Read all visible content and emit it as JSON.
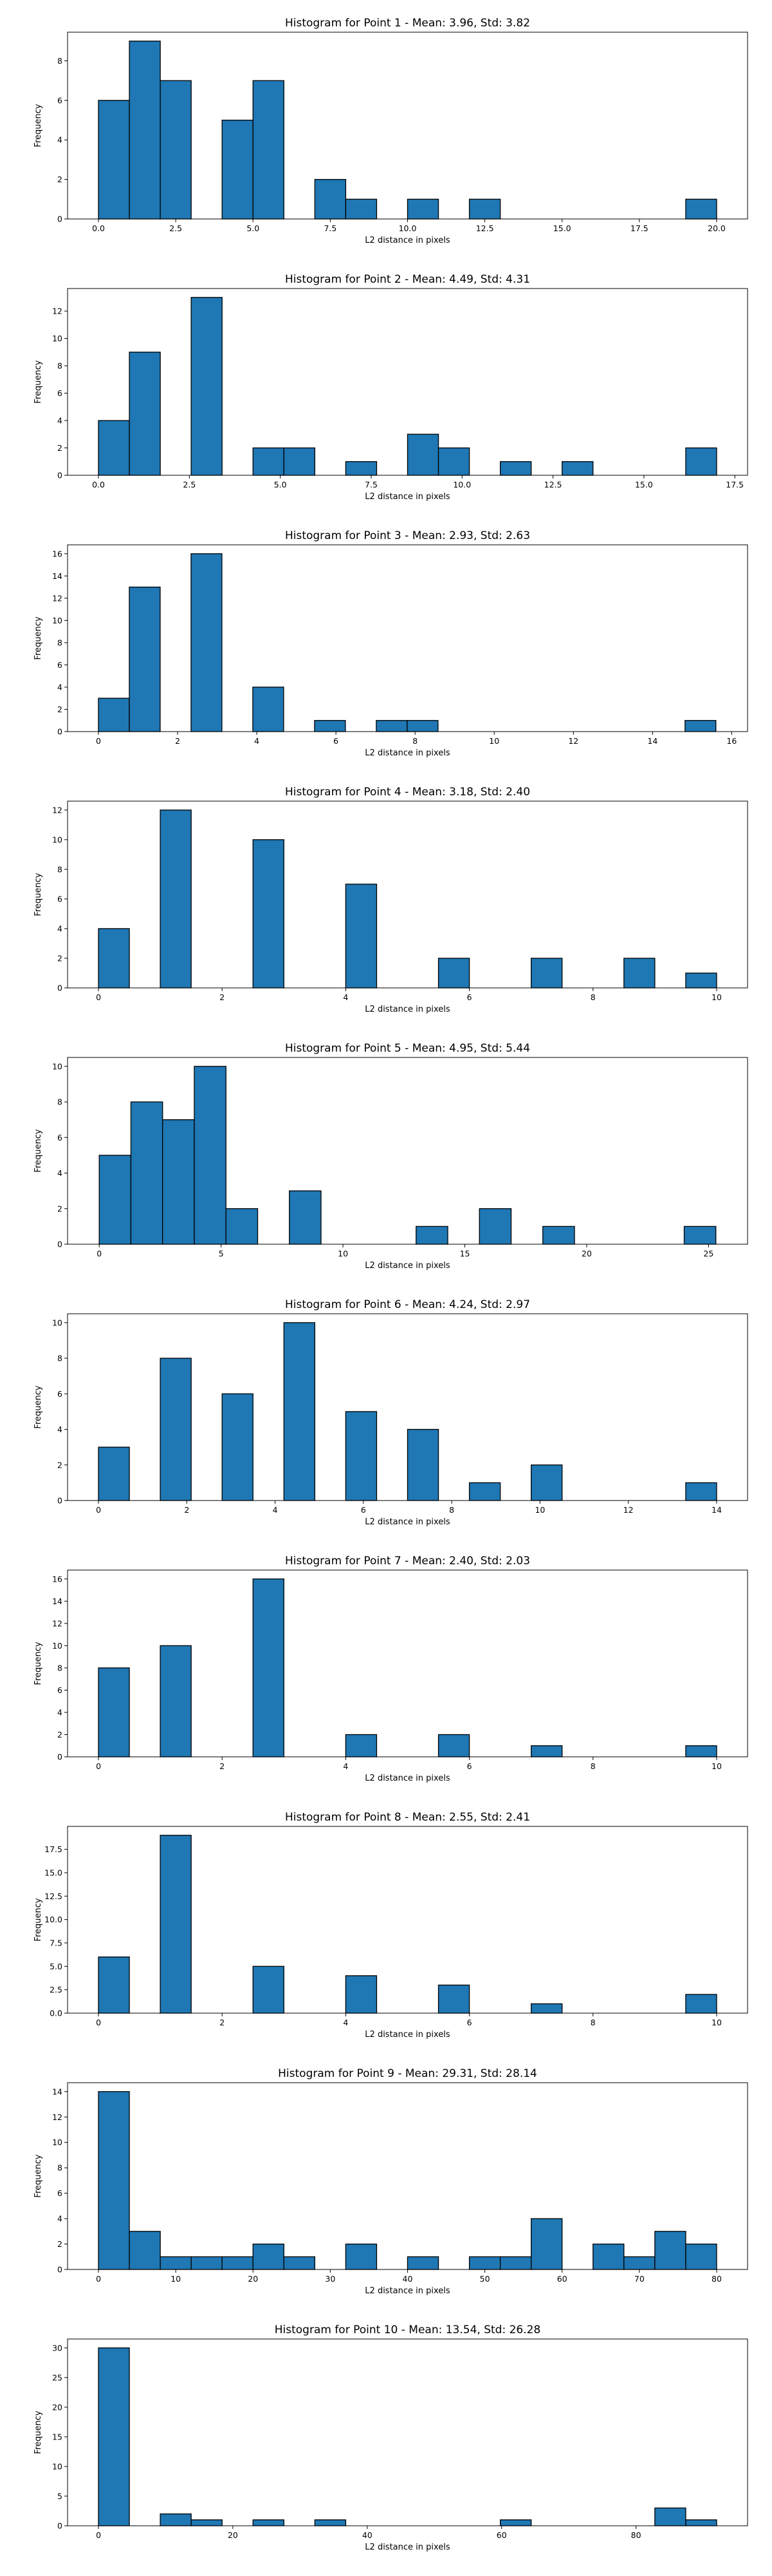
{
  "figure": {
    "chart_data": [
      {
        "type": "bar",
        "title": "Histogram for Point 1 - Mean: 3.96, Std: 3.82",
        "xlabel": "L2 distance in pixels",
        "ylabel": "Frequency",
        "xlim": [
          -1.0,
          21.0
        ],
        "ylim": [
          0,
          9.45
        ],
        "xticks": [
          0,
          2.5,
          5,
          7.5,
          10,
          12.5,
          15,
          17.5,
          20
        ],
        "xtick_labels": [
          "0.0",
          "2.5",
          "5.0",
          "7.5",
          "10.0",
          "12.5",
          "15.0",
          "17.5",
          "20.0"
        ],
        "yticks": [
          0,
          2,
          4,
          6,
          8
        ],
        "ytick_labels": [
          "0",
          "2",
          "4",
          "6",
          "8"
        ],
        "bins": [
          {
            "x0": 0.0,
            "x1": 1.0,
            "count": 6
          },
          {
            "x0": 1.0,
            "x1": 2.0,
            "count": 9
          },
          {
            "x0": 2.0,
            "x1": 3.0,
            "count": 7
          },
          {
            "x0": 4.0,
            "x1": 5.0,
            "count": 5
          },
          {
            "x0": 5.0,
            "x1": 6.0,
            "count": 7
          },
          {
            "x0": 7.0,
            "x1": 8.0,
            "count": 2
          },
          {
            "x0": 8.0,
            "x1": 9.0,
            "count": 1
          },
          {
            "x0": 10.0,
            "x1": 11.0,
            "count": 1
          },
          {
            "x0": 12.0,
            "x1": 13.0,
            "count": 1
          },
          {
            "x0": 19.0,
            "x1": 20.0,
            "count": 1
          }
        ]
      },
      {
        "type": "bar",
        "title": "Histogram for Point 2 - Mean: 4.49, Std: 4.31",
        "xlabel": "L2 distance in pixels",
        "ylabel": "Frequency",
        "xlim": [
          -0.85,
          17.85
        ],
        "ylim": [
          0,
          13.65
        ],
        "xticks": [
          0,
          2.5,
          5,
          7.5,
          10,
          12.5,
          15,
          17.5
        ],
        "xtick_labels": [
          "0.0",
          "2.5",
          "5.0",
          "7.5",
          "10.0",
          "12.5",
          "15.0",
          "17.5"
        ],
        "yticks": [
          0,
          2,
          4,
          6,
          8,
          10,
          12
        ],
        "ytick_labels": [
          "0",
          "2",
          "4",
          "6",
          "8",
          "10",
          "12"
        ],
        "bins": [
          {
            "x0": 0.0,
            "x1": 0.85,
            "count": 4
          },
          {
            "x0": 0.85,
            "x1": 1.7,
            "count": 9
          },
          {
            "x0": 2.55,
            "x1": 3.4,
            "count": 13
          },
          {
            "x0": 4.25,
            "x1": 5.1,
            "count": 2
          },
          {
            "x0": 5.1,
            "x1": 5.95,
            "count": 2
          },
          {
            "x0": 6.8,
            "x1": 7.65,
            "count": 1
          },
          {
            "x0": 8.5,
            "x1": 9.35,
            "count": 3
          },
          {
            "x0": 9.35,
            "x1": 10.2,
            "count": 2
          },
          {
            "x0": 11.05,
            "x1": 11.9,
            "count": 1
          },
          {
            "x0": 12.75,
            "x1": 13.6,
            "count": 1
          },
          {
            "x0": 16.15,
            "x1": 17.0,
            "count": 2
          }
        ]
      },
      {
        "type": "bar",
        "title": "Histogram for Point 3 - Mean: 2.93, Std: 2.63",
        "xlabel": "L2 distance in pixels",
        "ylabel": "Frequency",
        "xlim": [
          -0.78,
          16.4
        ],
        "ylim": [
          0,
          16.8
        ],
        "xticks": [
          0,
          2,
          4,
          6,
          8,
          10,
          12,
          14,
          16
        ],
        "xtick_labels": [
          "0",
          "2",
          "4",
          "6",
          "8",
          "10",
          "12",
          "14",
          "16"
        ],
        "yticks": [
          0,
          2,
          4,
          6,
          8,
          10,
          12,
          14,
          16
        ],
        "ytick_labels": [
          "0",
          "2",
          "4",
          "6",
          "8",
          "10",
          "12",
          "14",
          "16"
        ],
        "bins": [
          {
            "x0": 0.0,
            "x1": 0.78,
            "count": 3
          },
          {
            "x0": 0.78,
            "x1": 1.56,
            "count": 13
          },
          {
            "x0": 2.34,
            "x1": 3.12,
            "count": 16
          },
          {
            "x0": 3.9,
            "x1": 4.68,
            "count": 4
          },
          {
            "x0": 5.46,
            "x1": 6.24,
            "count": 1
          },
          {
            "x0": 7.02,
            "x1": 7.8,
            "count": 1
          },
          {
            "x0": 7.8,
            "x1": 8.58,
            "count": 1
          },
          {
            "x0": 14.82,
            "x1": 15.6,
            "count": 1
          }
        ]
      },
      {
        "type": "bar",
        "title": "Histogram for Point 4 - Mean: 3.18, Std: 2.40",
        "xlabel": "L2 distance in pixels",
        "ylabel": "Frequency",
        "xlim": [
          -0.5,
          10.5
        ],
        "ylim": [
          0,
          12.6
        ],
        "xticks": [
          0,
          2,
          4,
          6,
          8,
          10
        ],
        "xtick_labels": [
          "0",
          "2",
          "4",
          "6",
          "8",
          "10"
        ],
        "yticks": [
          0,
          2,
          4,
          6,
          8,
          10,
          12
        ],
        "ytick_labels": [
          "0",
          "2",
          "4",
          "6",
          "8",
          "10",
          "12"
        ],
        "bins": [
          {
            "x0": 0.0,
            "x1": 0.5,
            "count": 4
          },
          {
            "x0": 1.0,
            "x1": 1.5,
            "count": 12
          },
          {
            "x0": 2.5,
            "x1": 3.0,
            "count": 10
          },
          {
            "x0": 4.0,
            "x1": 4.5,
            "count": 7
          },
          {
            "x0": 5.5,
            "x1": 6.0,
            "count": 2
          },
          {
            "x0": 7.0,
            "x1": 7.5,
            "count": 2
          },
          {
            "x0": 8.5,
            "x1": 9.0,
            "count": 2
          },
          {
            "x0": 9.5,
            "x1": 10.0,
            "count": 1
          }
        ]
      },
      {
        "type": "bar",
        "title": "Histogram for Point 5 - Mean: 4.95, Std: 5.44",
        "xlabel": "L2 distance in pixels",
        "ylabel": "Frequency",
        "xlim": [
          -1.3,
          26.6
        ],
        "ylim": [
          0,
          10.5
        ],
        "xticks": [
          0,
          5,
          10,
          15,
          20,
          25
        ],
        "xtick_labels": [
          "0",
          "5",
          "10",
          "15",
          "20",
          "25"
        ],
        "yticks": [
          0,
          2,
          4,
          6,
          8,
          10
        ],
        "ytick_labels": [
          "0",
          "2",
          "4",
          "6",
          "8",
          "10"
        ],
        "bins": [
          {
            "x0": 0.0,
            "x1": 1.3,
            "count": 5
          },
          {
            "x0": 1.3,
            "x1": 2.6,
            "count": 8
          },
          {
            "x0": 2.6,
            "x1": 3.9,
            "count": 7
          },
          {
            "x0": 3.9,
            "x1": 5.2,
            "count": 10
          },
          {
            "x0": 5.2,
            "x1": 6.5,
            "count": 2
          },
          {
            "x0": 7.8,
            "x1": 9.1,
            "count": 3
          },
          {
            "x0": 13.0,
            "x1": 14.3,
            "count": 1
          },
          {
            "x0": 15.6,
            "x1": 16.9,
            "count": 2
          },
          {
            "x0": 18.2,
            "x1": 19.5,
            "count": 1
          },
          {
            "x0": 24.0,
            "x1": 25.3,
            "count": 1
          }
        ]
      },
      {
        "type": "bar",
        "title": "Histogram for Point 6 - Mean: 4.24, Std: 2.97",
        "xlabel": "L2 distance in pixels",
        "ylabel": "Frequency",
        "xlim": [
          -0.7,
          14.7
        ],
        "ylim": [
          0,
          10.5
        ],
        "xticks": [
          0,
          2,
          4,
          6,
          8,
          10,
          12,
          14
        ],
        "xtick_labels": [
          "0",
          "2",
          "4",
          "6",
          "8",
          "10",
          "12",
          "14"
        ],
        "yticks": [
          0,
          2,
          4,
          6,
          8,
          10
        ],
        "ytick_labels": [
          "0",
          "2",
          "4",
          "6",
          "8",
          "10"
        ],
        "bins": [
          {
            "x0": 0.0,
            "x1": 0.7,
            "count": 3
          },
          {
            "x0": 1.4,
            "x1": 2.1,
            "count": 8
          },
          {
            "x0": 2.8,
            "x1": 3.5,
            "count": 6
          },
          {
            "x0": 4.2,
            "x1": 4.9,
            "count": 10
          },
          {
            "x0": 5.6,
            "x1": 6.3,
            "count": 5
          },
          {
            "x0": 7.0,
            "x1": 7.7,
            "count": 4
          },
          {
            "x0": 8.4,
            "x1": 9.1,
            "count": 1
          },
          {
            "x0": 9.8,
            "x1": 10.5,
            "count": 2
          },
          {
            "x0": 13.3,
            "x1": 14.0,
            "count": 1
          }
        ]
      },
      {
        "type": "bar",
        "title": "Histogram for Point 7 - Mean: 2.40, Std: 2.03",
        "xlabel": "L2 distance in pixels",
        "ylabel": "Frequency",
        "xlim": [
          -0.5,
          10.5
        ],
        "ylim": [
          0,
          16.8
        ],
        "xticks": [
          0,
          2,
          4,
          6,
          8,
          10
        ],
        "xtick_labels": [
          "0",
          "2",
          "4",
          "6",
          "8",
          "10"
        ],
        "yticks": [
          0,
          2,
          4,
          6,
          8,
          10,
          12,
          14,
          16
        ],
        "ytick_labels": [
          "0",
          "2",
          "4",
          "6",
          "8",
          "10",
          "12",
          "14",
          "16"
        ],
        "bins": [
          {
            "x0": 0.0,
            "x1": 0.5,
            "count": 8
          },
          {
            "x0": 1.0,
            "x1": 1.5,
            "count": 10
          },
          {
            "x0": 2.5,
            "x1": 3.0,
            "count": 16
          },
          {
            "x0": 4.0,
            "x1": 4.5,
            "count": 2
          },
          {
            "x0": 5.5,
            "x1": 6.0,
            "count": 2
          },
          {
            "x0": 7.0,
            "x1": 7.5,
            "count": 1
          },
          {
            "x0": 9.5,
            "x1": 10.0,
            "count": 1
          }
        ]
      },
      {
        "type": "bar",
        "title": "Histogram for Point 8 - Mean: 2.55, Std: 2.41",
        "xlabel": "L2 distance in pixels",
        "ylabel": "Frequency",
        "xlim": [
          -0.5,
          10.5
        ],
        "ylim": [
          0,
          19.95
        ],
        "xticks": [
          0,
          2,
          4,
          6,
          8,
          10
        ],
        "xtick_labels": [
          "0",
          "2",
          "4",
          "6",
          "8",
          "10"
        ],
        "yticks": [
          0,
          2.5,
          5,
          7.5,
          10,
          12.5,
          15,
          17.5
        ],
        "ytick_labels": [
          "0.0",
          "2.5",
          "5.0",
          "7.5",
          "10.0",
          "12.5",
          "15.0",
          "17.5"
        ],
        "bins": [
          {
            "x0": 0.0,
            "x1": 0.5,
            "count": 6
          },
          {
            "x0": 1.0,
            "x1": 1.5,
            "count": 19
          },
          {
            "x0": 2.5,
            "x1": 3.0,
            "count": 5
          },
          {
            "x0": 4.0,
            "x1": 4.5,
            "count": 4
          },
          {
            "x0": 5.5,
            "x1": 6.0,
            "count": 3
          },
          {
            "x0": 7.0,
            "x1": 7.5,
            "count": 1
          },
          {
            "x0": 9.5,
            "x1": 10.0,
            "count": 2
          }
        ]
      },
      {
        "type": "bar",
        "title": "Histogram for Point 9 - Mean: 29.31, Std: 28.14",
        "xlabel": "L2 distance in pixels",
        "ylabel": "Frequency",
        "xlim": [
          -4.0,
          84.0
        ],
        "ylim": [
          0,
          14.7
        ],
        "xticks": [
          0,
          10,
          20,
          30,
          40,
          50,
          60,
          70,
          80
        ],
        "xtick_labels": [
          "0",
          "10",
          "20",
          "30",
          "40",
          "50",
          "60",
          "70",
          "80"
        ],
        "yticks": [
          0,
          2,
          4,
          6,
          8,
          10,
          12,
          14
        ],
        "ytick_labels": [
          "0",
          "2",
          "4",
          "6",
          "8",
          "10",
          "12",
          "14"
        ],
        "bins": [
          {
            "x0": 0.0,
            "x1": 4.0,
            "count": 14
          },
          {
            "x0": 4.0,
            "x1": 8.0,
            "count": 3
          },
          {
            "x0": 8.0,
            "x1": 12.0,
            "count": 1
          },
          {
            "x0": 12.0,
            "x1": 16.0,
            "count": 1
          },
          {
            "x0": 16.0,
            "x1": 20.0,
            "count": 1
          },
          {
            "x0": 20.0,
            "x1": 24.0,
            "count": 2
          },
          {
            "x0": 24.0,
            "x1": 28.0,
            "count": 1
          },
          {
            "x0": 32.0,
            "x1": 36.0,
            "count": 2
          },
          {
            "x0": 40.0,
            "x1": 44.0,
            "count": 1
          },
          {
            "x0": 48.0,
            "x1": 52.0,
            "count": 1
          },
          {
            "x0": 52.0,
            "x1": 56.0,
            "count": 1
          },
          {
            "x0": 56.0,
            "x1": 60.0,
            "count": 4
          },
          {
            "x0": 64.0,
            "x1": 68.0,
            "count": 2
          },
          {
            "x0": 68.0,
            "x1": 72.0,
            "count": 1
          },
          {
            "x0": 72.0,
            "x1": 76.0,
            "count": 3
          },
          {
            "x0": 76.0,
            "x1": 80.0,
            "count": 2
          }
        ]
      },
      {
        "type": "bar",
        "title": "Histogram for Point 10 - Mean: 13.54, Std: 26.28",
        "xlabel": "L2 distance in pixels",
        "ylabel": "Frequency",
        "xlim": [
          -4.6,
          96.6
        ],
        "ylim": [
          0,
          31.5
        ],
        "xticks": [
          0,
          20,
          40,
          60,
          80
        ],
        "xtick_labels": [
          "0",
          "20",
          "40",
          "60",
          "80"
        ],
        "yticks": [
          0,
          5,
          10,
          15,
          20,
          25,
          30
        ],
        "ytick_labels": [
          "0",
          "5",
          "10",
          "15",
          "20",
          "25",
          "30"
        ],
        "bins": [
          {
            "x0": 0.0,
            "x1": 4.6,
            "count": 30
          },
          {
            "x0": 9.2,
            "x1": 13.8,
            "count": 2
          },
          {
            "x0": 13.8,
            "x1": 18.4,
            "count": 1
          },
          {
            "x0": 23.0,
            "x1": 27.6,
            "count": 1
          },
          {
            "x0": 32.2,
            "x1": 36.8,
            "count": 1
          },
          {
            "x0": 59.8,
            "x1": 64.4,
            "count": 1
          },
          {
            "x0": 82.8,
            "x1": 87.4,
            "count": 3
          },
          {
            "x0": 87.4,
            "x1": 92.0,
            "count": 1
          }
        ]
      }
    ]
  }
}
